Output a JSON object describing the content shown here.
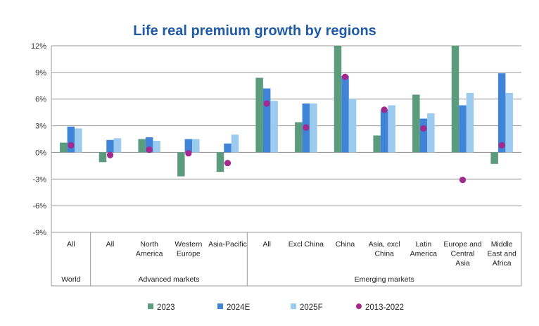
{
  "chart_data": {
    "type": "bar",
    "title": "Life real premium growth by regions",
    "ylim": [
      -9,
      12
    ],
    "yticks": [
      "12%",
      "9%",
      "6%",
      "3%",
      "0%",
      "-3%",
      "-6%",
      "-9%"
    ],
    "categories": [
      [
        "All"
      ],
      [
        "All"
      ],
      [
        "North",
        "America"
      ],
      [
        "Western",
        "Europe"
      ],
      [
        "Asia-Pacific"
      ],
      [
        "All"
      ],
      [
        "Excl China"
      ],
      [
        "China"
      ],
      [
        "Asia, excl",
        "China"
      ],
      [
        "Latin",
        "America"
      ],
      [
        "Europe and",
        "Central",
        "Asia"
      ],
      [
        "Middle",
        "East and",
        "Africa"
      ]
    ],
    "groups": [
      {
        "label": "World",
        "span": 1
      },
      {
        "label": "Advanced markets",
        "span": 4
      },
      {
        "label": "Emerging markets",
        "span": 7
      }
    ],
    "series": [
      {
        "name": "2023",
        "color": "#5b9b7e",
        "values": [
          1.1,
          -1.1,
          1.5,
          -2.7,
          -2.2,
          8.4,
          3.4,
          12.0,
          1.9,
          6.5,
          12.0,
          -1.3
        ]
      },
      {
        "name": "2024E",
        "color": "#3f84d6",
        "values": [
          2.9,
          1.4,
          1.7,
          1.5,
          1.0,
          7.2,
          5.5,
          8.6,
          4.8,
          3.8,
          5.3,
          8.9
        ]
      },
      {
        "name": "2025F",
        "color": "#9ccbf0",
        "values": [
          2.7,
          1.6,
          1.3,
          1.5,
          2.0,
          5.8,
          5.5,
          6.0,
          5.3,
          4.4,
          6.7,
          6.7
        ]
      }
    ],
    "markers": {
      "name": "2013-2022",
      "color": "#a32a8c",
      "values": [
        0.8,
        -0.3,
        0.3,
        -0.1,
        -1.2,
        5.5,
        2.8,
        8.5,
        4.8,
        2.7,
        -3.1,
        0.8
      ]
    }
  }
}
